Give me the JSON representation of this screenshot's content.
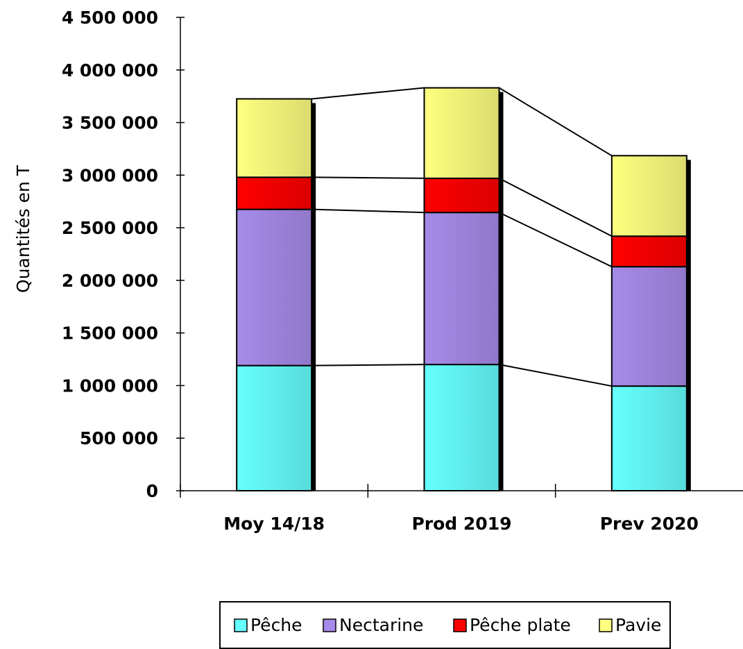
{
  "chart_data": {
    "type": "bar",
    "stacked": true,
    "categories": [
      "Moy 14/18",
      "Prod 2019",
      "Prev 2020"
    ],
    "series": [
      {
        "name": "Pêche",
        "color": "#66ffff",
        "values": [
          1190000,
          1200000,
          995000
        ]
      },
      {
        "name": "Nectarine",
        "color": "#a78bea",
        "values": [
          1485000,
          1445000,
          1135000
        ]
      },
      {
        "name": "Pêche plate",
        "color": "#ff0000",
        "values": [
          305000,
          325000,
          290000
        ]
      },
      {
        "name": "Pavie",
        "color": "#ffff80",
        "values": [
          745000,
          860000,
          765000
        ]
      }
    ],
    "ylabel": "Quantités en T",
    "xlabel": "",
    "title": "",
    "ylim": [
      0,
      4500000
    ],
    "ytick_values": [
      0,
      500000,
      1000000,
      1500000,
      2000000,
      2500000,
      3000000,
      3500000,
      4000000,
      4500000
    ],
    "ytick_labels": [
      "0",
      "500 000",
      "1 000 000",
      "1 500 000",
      "2 000 000",
      "2 500 000",
      "3 000 000",
      "3 500 000",
      "4 000 000",
      "4 500 000"
    ],
    "series_lines": true,
    "bar_shadow": true,
    "grid": false,
    "legend_position": "bottom"
  }
}
